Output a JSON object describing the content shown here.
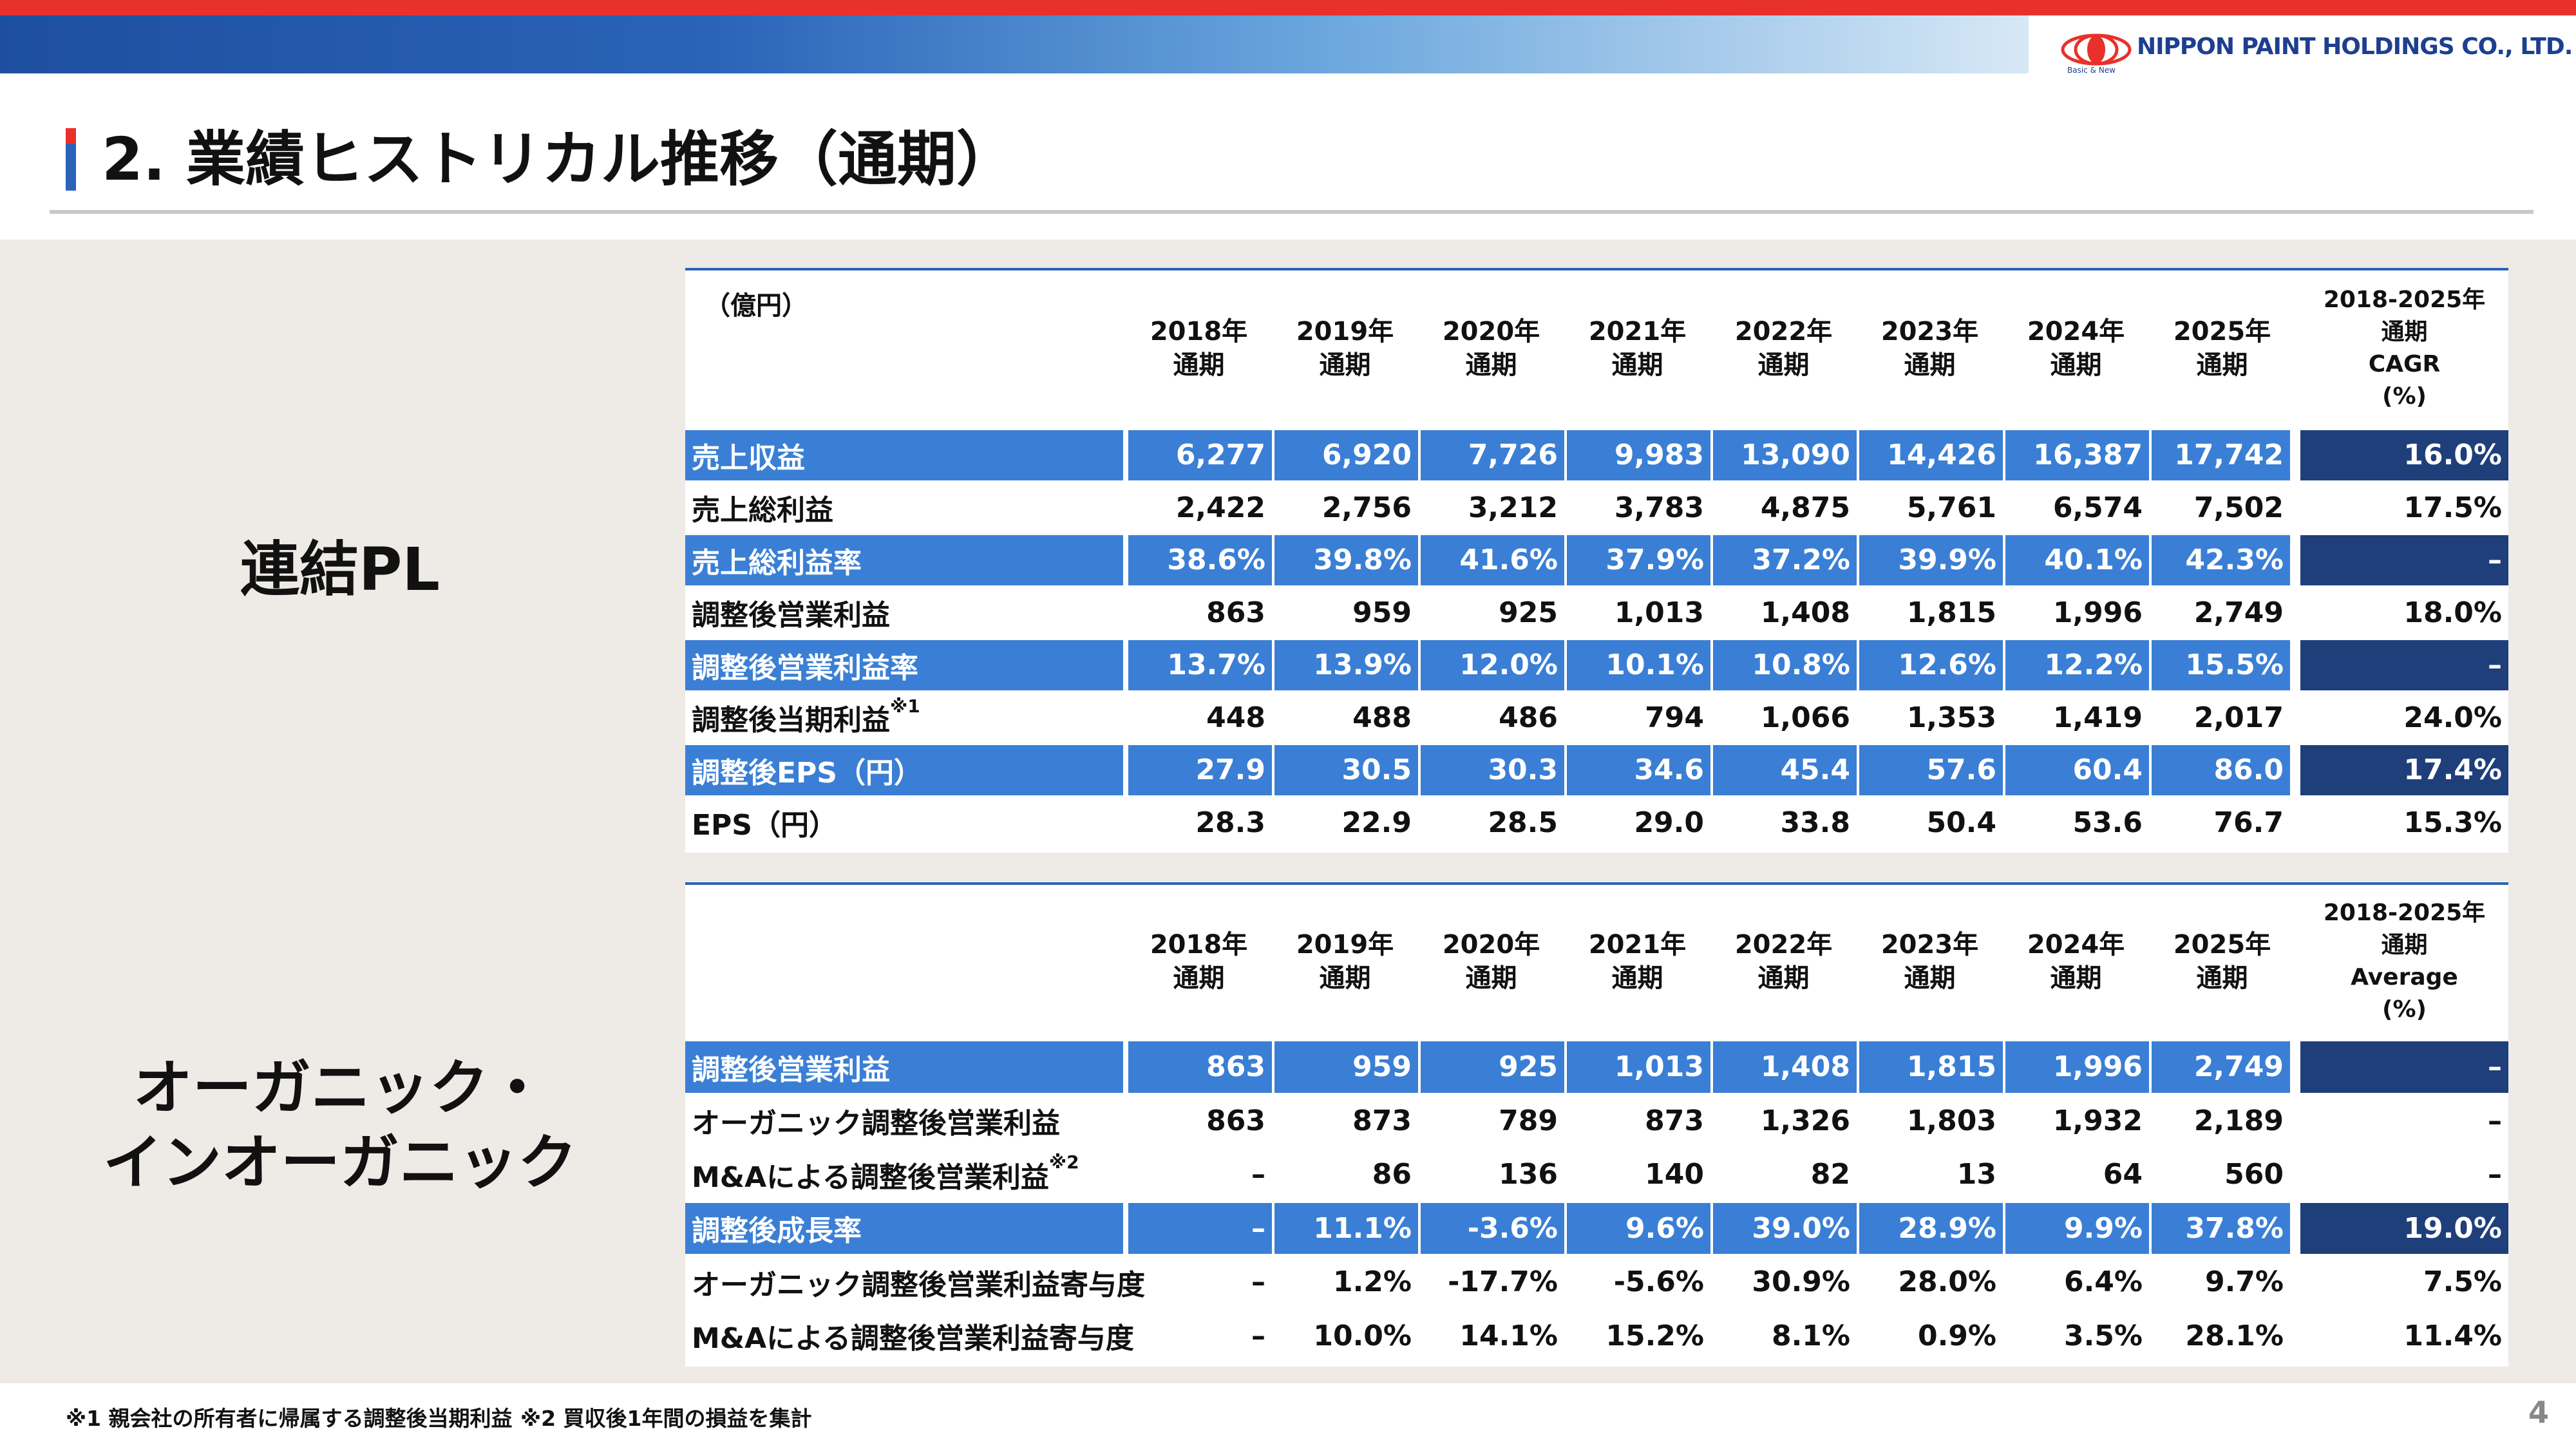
{
  "header": {
    "title": "2. 業績ヒストリカル推移（通期）",
    "logo": "NIPPON PAINT HOLDINGS CO., LTD.",
    "tagline": "Basic & New"
  },
  "sections": [
    {
      "label": [
        "連結PL"
      ],
      "table": {
        "unit": "（億円）",
        "columns": [
          [
            "2018年",
            "通期"
          ],
          [
            "2019年",
            "通期"
          ],
          [
            "2020年",
            "通期"
          ],
          [
            "2021年",
            "通期"
          ],
          [
            "2022年",
            "通期"
          ],
          [
            "2023年",
            "通期"
          ],
          [
            "2024年",
            "通期"
          ],
          [
            "2025年",
            "通期"
          ],
          [
            "2018-2025年",
            "通期",
            "CAGR",
            "(%)"
          ]
        ],
        "rows": [
          {
            "label": "売上収益",
            "highlight": true,
            "values": [
              "6,277",
              "6,920",
              "7,726",
              "9,983",
              "13,090",
              "14,426",
              "16,387",
              "17,742",
              "16.0%"
            ]
          },
          {
            "label": "売上総利益",
            "highlight": false,
            "values": [
              "2,422",
              "2,756",
              "3,212",
              "3,783",
              "4,875",
              "5,761",
              "6,574",
              "7,502",
              "17.5%"
            ]
          },
          {
            "label": "売上総利益率",
            "highlight": true,
            "values": [
              "38.6%",
              "39.8%",
              "41.6%",
              "37.9%",
              "37.2%",
              "39.9%",
              "40.1%",
              "42.3%",
              "–"
            ]
          },
          {
            "label": "調整後営業利益",
            "highlight": false,
            "values": [
              "863",
              "959",
              "925",
              "1,013",
              "1,408",
              "1,815",
              "1,996",
              "2,749",
              "18.0%"
            ]
          },
          {
            "label": "調整後営業利益率",
            "highlight": true,
            "values": [
              "13.7%",
              "13.9%",
              "12.0%",
              "10.1%",
              "10.8%",
              "12.6%",
              "12.2%",
              "15.5%",
              "–"
            ]
          },
          {
            "label": "調整後当期利益",
            "note": "※1",
            "highlight": false,
            "values": [
              "448",
              "488",
              "486",
              "794",
              "1,066",
              "1,353",
              "1,419",
              "2,017",
              "24.0%"
            ]
          },
          {
            "label": "調整後EPS（円）",
            "highlight": true,
            "values": [
              "27.9",
              "30.5",
              "30.3",
              "34.6",
              "45.4",
              "57.6",
              "60.4",
              "86.0",
              "17.4%"
            ]
          },
          {
            "label": "EPS（円）",
            "highlight": false,
            "values": [
              "28.3",
              "22.9",
              "28.5",
              "29.0",
              "33.8",
              "50.4",
              "53.6",
              "76.7",
              "15.3%"
            ]
          }
        ]
      }
    },
    {
      "label": [
        "オーガニック・",
        "インオーガニック"
      ],
      "table": {
        "columns": [
          [
            "2018年",
            "通期"
          ],
          [
            "2019年",
            "通期"
          ],
          [
            "2020年",
            "通期"
          ],
          [
            "2021年",
            "通期"
          ],
          [
            "2022年",
            "通期"
          ],
          [
            "2023年",
            "通期"
          ],
          [
            "2024年",
            "通期"
          ],
          [
            "2025年",
            "通期"
          ],
          [
            "2018-2025年",
            "通期",
            "Average",
            "(%)"
          ]
        ],
        "rows": [
          {
            "label": "調整後営業利益",
            "highlight": true,
            "values": [
              "863",
              "959",
              "925",
              "1,013",
              "1,408",
              "1,815",
              "1,996",
              "2,749",
              "–"
            ]
          },
          {
            "label": "オーガニック調整後営業利益",
            "highlight": false,
            "values": [
              "863",
              "873",
              "789",
              "873",
              "1,326",
              "1,803",
              "1,932",
              "2,189",
              "–"
            ]
          },
          {
            "label": "M&Aによる調整後営業利益",
            "note": "※2",
            "highlight": false,
            "values": [
              "–",
              "86",
              "136",
              "140",
              "82",
              "13",
              "64",
              "560",
              "–"
            ]
          },
          {
            "label": "調整後成長率",
            "highlight": true,
            "values": [
              "–",
              "11.1%",
              "-3.6%",
              "9.6%",
              "39.0%",
              "28.9%",
              "9.9%",
              "37.8%",
              "19.0%"
            ]
          },
          {
            "label": "オーガニック調整後営業利益寄与度",
            "highlight": false,
            "values": [
              "–",
              "1.2%",
              "-17.7%",
              "-5.6%",
              "30.9%",
              "28.0%",
              "6.4%",
              "9.7%",
              "7.5%"
            ]
          },
          {
            "label": "M&Aによる調整後営業利益寄与度",
            "highlight": false,
            "values": [
              "–",
              "10.0%",
              "14.1%",
              "15.2%",
              "8.1%",
              "0.9%",
              "3.5%",
              "28.1%",
              "11.4%"
            ]
          }
        ]
      }
    }
  ],
  "footnotes": [
    "※1 親会社の所有者に帰属する調整後当期利益",
    "※2 買収後1年間の損益を集計"
  ],
  "page_number": "4"
}
